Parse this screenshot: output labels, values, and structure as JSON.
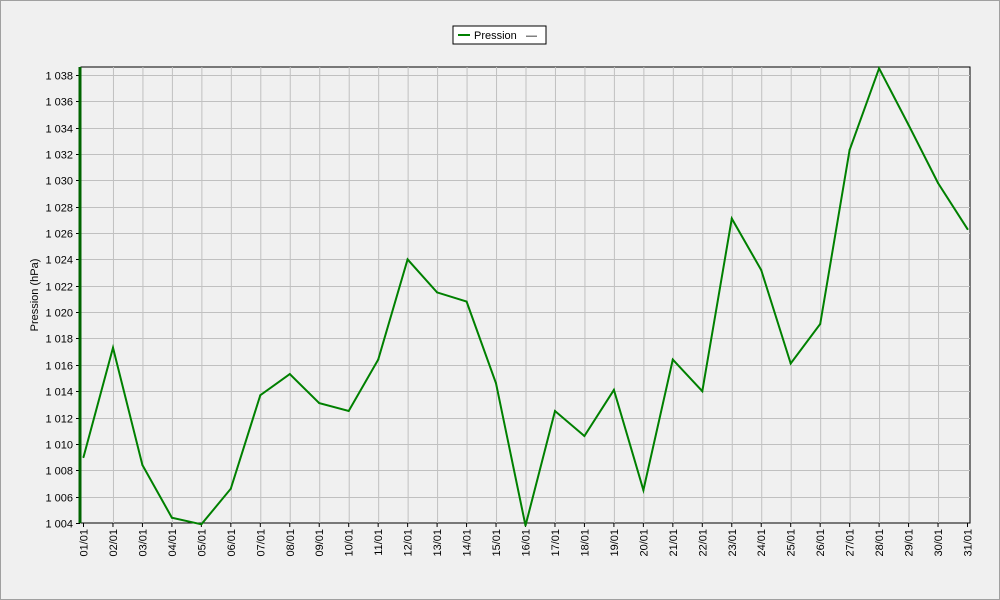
{
  "chart_data": {
    "type": "line",
    "title": "",
    "xlabel": "",
    "ylabel": "Pression (hPa)",
    "ylim": [
      1004,
      1038.6
    ],
    "y_ticks": [
      "1 004",
      "1 006",
      "1 008",
      "1 010",
      "1 012",
      "1 014",
      "1 016",
      "1 018",
      "1 020",
      "1 022",
      "1 024",
      "1 026",
      "1 028",
      "1 030",
      "1 032",
      "1 034",
      "1 036",
      "1 038"
    ],
    "categories": [
      "01/01",
      "02/01",
      "03/01",
      "04/01",
      "05/01",
      "06/01",
      "07/01",
      "08/01",
      "09/01",
      "10/01",
      "11/01",
      "12/01",
      "13/01",
      "14/01",
      "15/01",
      "16/01",
      "17/01",
      "18/01",
      "19/01",
      "20/01",
      "21/01",
      "22/01",
      "23/01",
      "24/01",
      "25/01",
      "26/01",
      "27/01",
      "28/01",
      "29/01",
      "30/01",
      "31/01"
    ],
    "series": [
      {
        "name": "Pression",
        "color": "#008000",
        "values": [
          1009.0,
          1017.3,
          1008.4,
          1004.4,
          1003.9,
          1006.6,
          1013.7,
          1015.3,
          1013.1,
          1012.5,
          1016.4,
          1024.0,
          1021.5,
          1020.8,
          1014.6,
          1003.8,
          1012.5,
          1010.6,
          1014.1,
          1006.5,
          1016.4,
          1014.0,
          1027.1,
          1023.2,
          1016.1,
          1019.1,
          1032.3,
          1038.5,
          1034.2,
          1029.8,
          1026.3
        ]
      }
    ],
    "grid": true,
    "legend_position": "top-center",
    "legend_suffix": "—"
  }
}
